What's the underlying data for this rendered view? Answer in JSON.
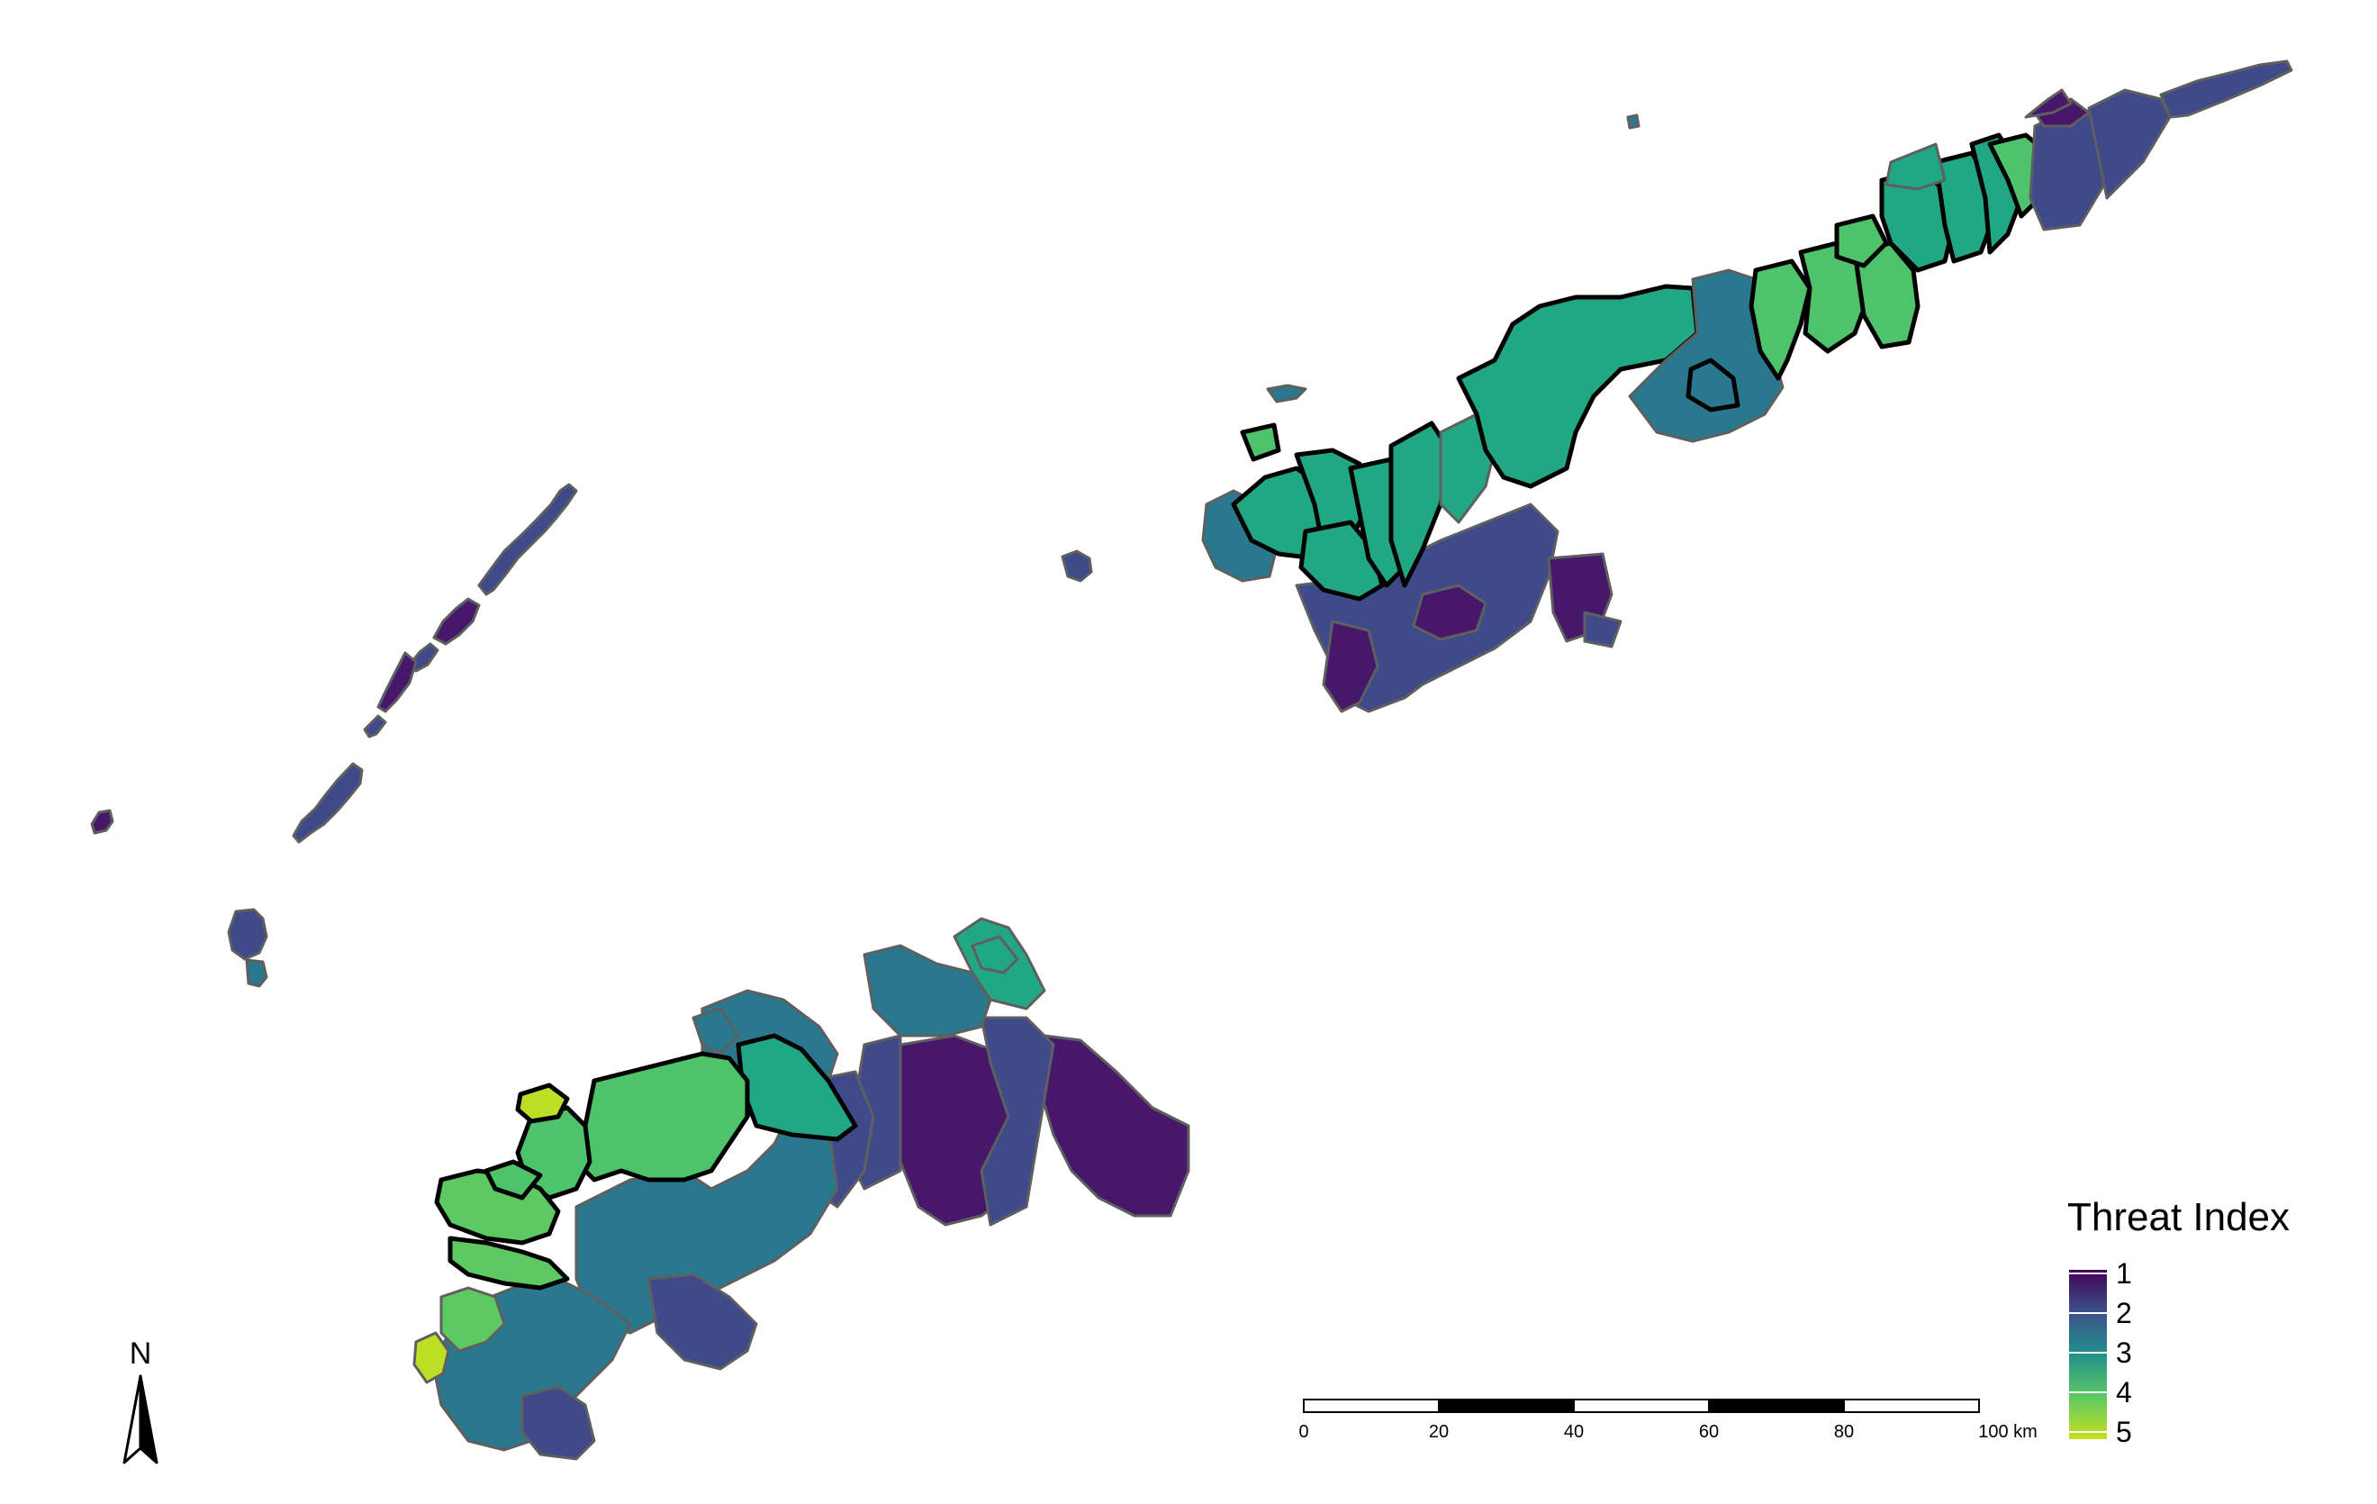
{
  "legend": {
    "title": "Threat Index",
    "labels": [
      "1",
      "2",
      "3",
      "4",
      "5"
    ],
    "gradient": [
      "#440154",
      "#3b528b",
      "#21908c",
      "#5dc963",
      "#c7e020"
    ]
  },
  "scalebar": {
    "labels": [
      "0",
      "20",
      "40",
      "60",
      "80",
      "100 km"
    ]
  },
  "north_arrow": {
    "label": "N",
    "icon": "north-arrow-icon"
  },
  "palette": {
    "1": "#46176b",
    "2": "#3f4a8a",
    "3": "#2a788e",
    "4": "#22a784",
    "4.5": "#4ec36b",
    "5": "#bddf26"
  },
  "highlight_color": "#000000"
}
